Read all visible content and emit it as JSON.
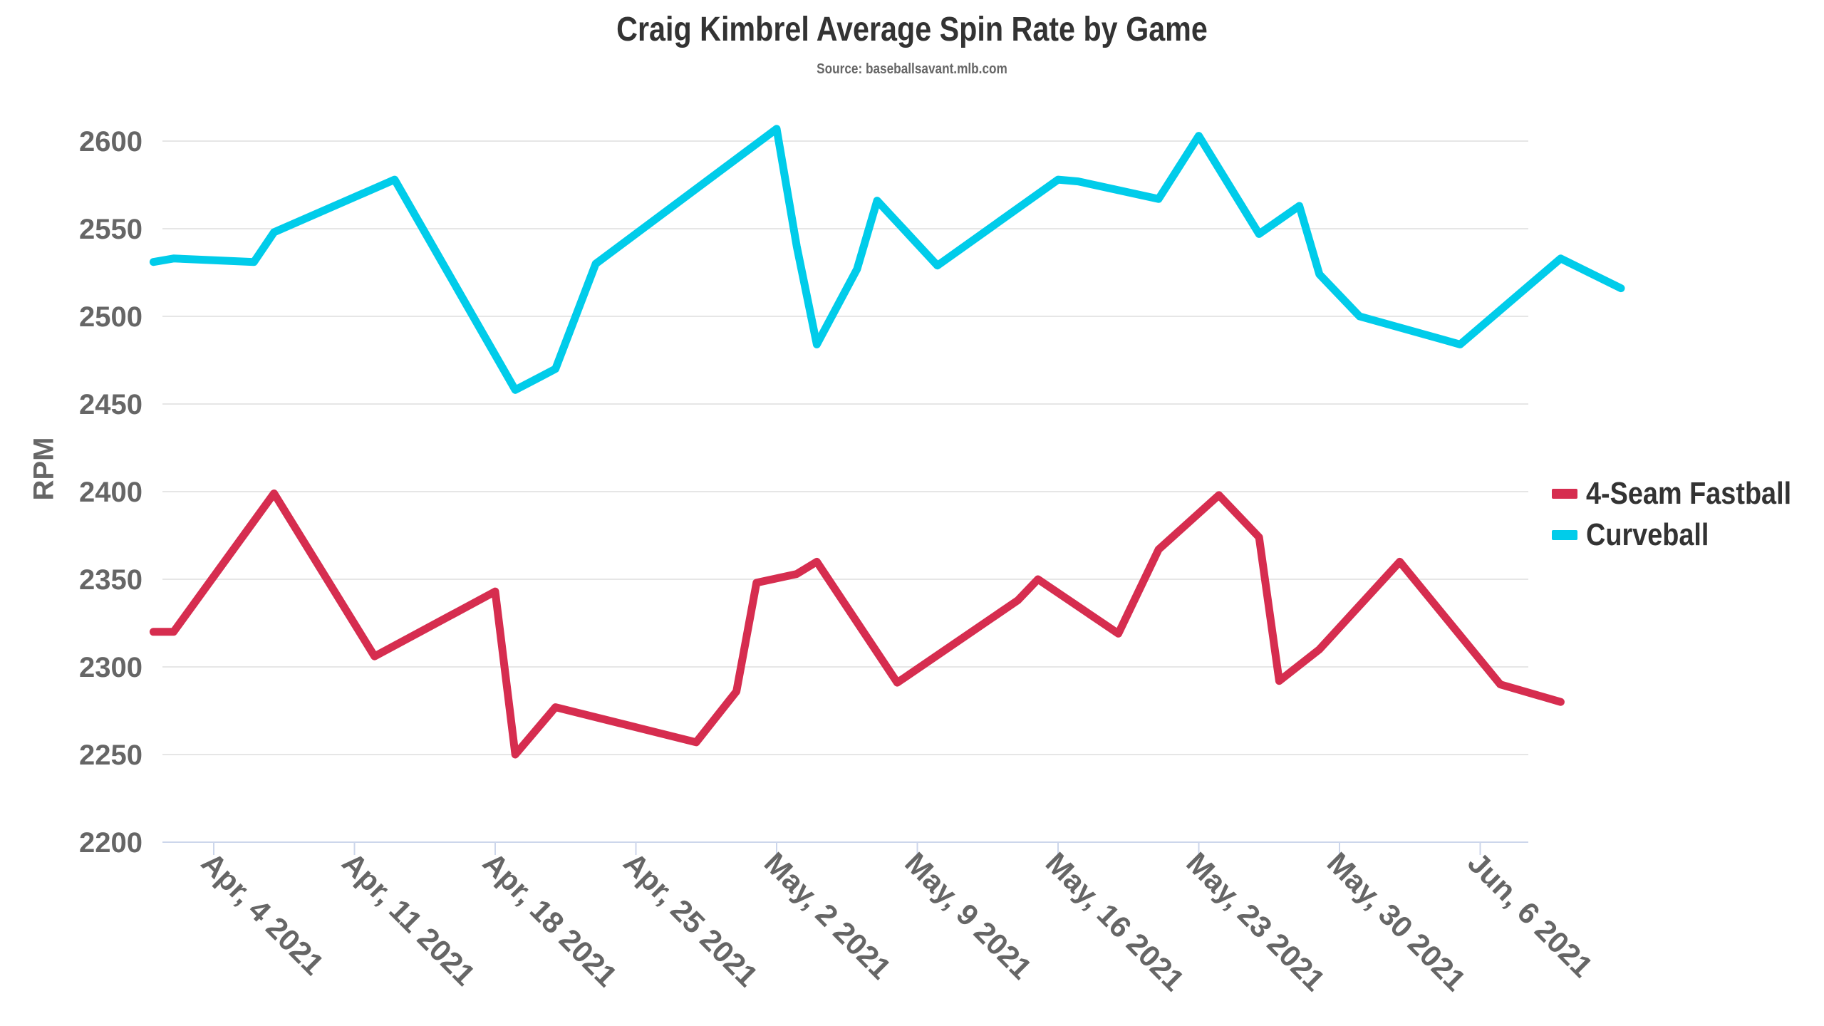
{
  "chart_data": {
    "type": "line",
    "title": "Craig Kimbrel Average Spin Rate by Game",
    "subtitle": "Source: baseballsavant.mlb.com",
    "ylabel": "RPM",
    "xlabel": "",
    "ylim": [
      2200,
      2630
    ],
    "y_ticks": [
      2200,
      2250,
      2300,
      2350,
      2400,
      2450,
      2500,
      2550,
      2600
    ],
    "x_range": [
      "2021-04-01",
      "2021-06-10"
    ],
    "x_ticks": [
      {
        "date": "2021-04-04",
        "label": "Apr, 4 2021"
      },
      {
        "date": "2021-04-11",
        "label": "Apr, 11 2021"
      },
      {
        "date": "2021-04-18",
        "label": "Apr, 18 2021"
      },
      {
        "date": "2021-04-25",
        "label": "Apr, 25 2021"
      },
      {
        "date": "2021-05-02",
        "label": "May, 2 2021"
      },
      {
        "date": "2021-05-09",
        "label": "May, 9 2021"
      },
      {
        "date": "2021-05-16",
        "label": "May, 16 2021"
      },
      {
        "date": "2021-05-23",
        "label": "May, 23 2021"
      },
      {
        "date": "2021-05-30",
        "label": "May, 30 2021"
      },
      {
        "date": "2021-06-06",
        "label": "Jun, 6 2021"
      }
    ],
    "grid": true,
    "legend_position": "right",
    "series": [
      {
        "name": "4-Seam Fastball",
        "color": "#d62d4f",
        "points": [
          [
            "2021-04-01",
            2320
          ],
          [
            "2021-04-02",
            2320
          ],
          [
            "2021-04-07",
            2399
          ],
          [
            "2021-04-12",
            2306
          ],
          [
            "2021-04-18",
            2343
          ],
          [
            "2021-04-19",
            2250
          ],
          [
            "2021-04-21",
            2277
          ],
          [
            "2021-04-28",
            2257
          ],
          [
            "2021-04-30",
            2286
          ],
          [
            "2021-05-01",
            2348
          ],
          [
            "2021-05-03",
            2353
          ],
          [
            "2021-05-04",
            2360
          ],
          [
            "2021-05-08",
            2291
          ],
          [
            "2021-05-14",
            2338
          ],
          [
            "2021-05-15",
            2350
          ],
          [
            "2021-05-19",
            2319
          ],
          [
            "2021-05-21",
            2367
          ],
          [
            "2021-05-24",
            2398
          ],
          [
            "2021-05-26",
            2374
          ],
          [
            "2021-05-27",
            2292
          ],
          [
            "2021-05-29",
            2310
          ],
          [
            "2021-06-02",
            2360
          ],
          [
            "2021-06-07",
            2290
          ],
          [
            "2021-06-10",
            2280
          ]
        ]
      },
      {
        "name": "Curveball",
        "color": "#00ccea",
        "points": [
          [
            "2021-04-01",
            2531
          ],
          [
            "2021-04-02",
            2533
          ],
          [
            "2021-04-04",
            2532
          ],
          [
            "2021-04-06",
            2531
          ],
          [
            "2021-04-07",
            2548
          ],
          [
            "2021-04-13",
            2578
          ],
          [
            "2021-04-19",
            2458
          ],
          [
            "2021-04-21",
            2470
          ],
          [
            "2021-04-23",
            2530
          ],
          [
            "2021-05-02",
            2607
          ],
          [
            "2021-05-03",
            2540
          ],
          [
            "2021-05-04",
            2484
          ],
          [
            "2021-05-06",
            2527
          ],
          [
            "2021-05-07",
            2566
          ],
          [
            "2021-05-10",
            2529
          ],
          [
            "2021-05-16",
            2578
          ],
          [
            "2021-05-17",
            2577
          ],
          [
            "2021-05-21",
            2567
          ],
          [
            "2021-05-23",
            2603
          ],
          [
            "2021-05-26",
            2547
          ],
          [
            "2021-05-28",
            2563
          ],
          [
            "2021-05-29",
            2524
          ],
          [
            "2021-05-31",
            2500
          ],
          [
            "2021-06-05",
            2484
          ],
          [
            "2021-06-10",
            2533
          ],
          [
            "2021-06-13",
            2516
          ]
        ]
      }
    ]
  }
}
